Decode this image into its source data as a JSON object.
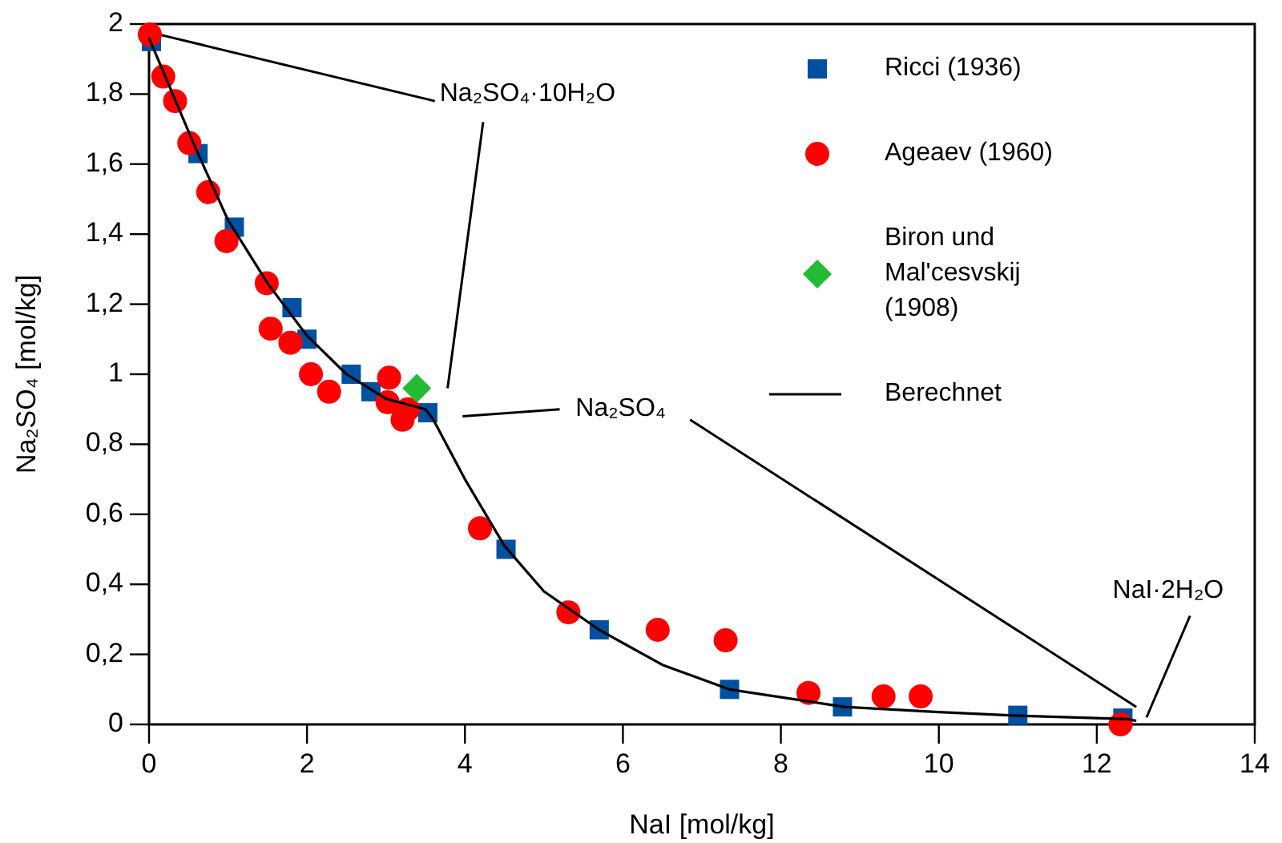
{
  "chart_data": {
    "type": "scatter",
    "xlabel": "NaI [mol/kg]",
    "ylabel": "Na₂SO₄ [mol/kg]",
    "xlim": [
      0,
      14
    ],
    "xticks": [
      0,
      2,
      4,
      6,
      8,
      10,
      12,
      14
    ],
    "ylim": [
      0,
      2
    ],
    "yticks": [
      0,
      {
        "value": 0.2,
        "label": "0,2"
      },
      {
        "value": 0.4,
        "label": "0,4"
      },
      {
        "value": 0.6,
        "label": "0,6"
      },
      {
        "value": 0.8,
        "label": "0,8"
      },
      1,
      {
        "value": 1.2,
        "label": "1,2"
      },
      {
        "value": 1.4,
        "label": "1,4"
      },
      {
        "value": 1.6,
        "label": "1,6"
      },
      {
        "value": 1.8,
        "label": "1,8"
      },
      2
    ],
    "grid": false,
    "legend": "top right",
    "series": [
      {
        "name": "Ricci (1936)",
        "marker": "square",
        "color": "#0050a0",
        "x": [
          0.03,
          0.62,
          1.08,
          1.81,
          2.0,
          2.56,
          2.81,
          3.53,
          4.52,
          5.7,
          7.35,
          8.78,
          11.0,
          12.33
        ],
        "values": [
          1.95,
          1.63,
          1.42,
          1.19,
          1.1,
          1.0,
          0.95,
          0.89,
          0.5,
          0.27,
          0.1,
          0.05,
          0.026,
          0.018
        ]
      },
      {
        "name": "Ageaev (1960)",
        "marker": "circle",
        "color": "#ff0000",
        "x": [
          0.01,
          0.18,
          0.33,
          0.51,
          0.75,
          0.98,
          1.49,
          1.54,
          1.79,
          2.05,
          2.28,
          3.04,
          3.02,
          3.21,
          3.28,
          4.19,
          5.31,
          6.44,
          7.3,
          8.35,
          9.3,
          9.77,
          12.3
        ],
        "values": [
          1.97,
          1.85,
          1.78,
          1.66,
          1.52,
          1.38,
          1.26,
          1.13,
          1.09,
          1.0,
          0.95,
          0.99,
          0.92,
          0.87,
          0.9,
          0.56,
          0.32,
          0.27,
          0.24,
          0.09,
          0.08,
          0.08,
          0
        ]
      },
      {
        "name": "Biron und Mal'cesvskij (1908)",
        "marker": "diamond",
        "color": "#22bb33",
        "x": [
          3.39
        ],
        "values": [
          0.96
        ]
      },
      {
        "name": "Berechnet",
        "type": "line",
        "marker": "none",
        "line_style": "solid",
        "color": "#000000",
        "x": [
          0,
          0.3,
          0.6,
          1.0,
          1.5,
          2.0,
          2.5,
          3.0,
          3.5,
          3.6,
          4.0,
          4.5,
          5.0,
          5.7,
          6.5,
          7.35,
          8.8,
          10.0,
          11.0,
          12.4,
          12.5
        ],
        "values": [
          1.96,
          1.8,
          1.64,
          1.44,
          1.26,
          1.11,
          1.0,
          0.93,
          0.9,
          0.87,
          0.7,
          0.51,
          0.38,
          0.27,
          0.17,
          0.1,
          0.05,
          0.035,
          0.025,
          0.015,
          0.01
        ]
      }
    ],
    "annotations": [
      {
        "text": "Na₂SO₄·10H₂O",
        "x": 0.13,
        "y": 1.97
      },
      "Na₂SO₄",
      "NaI·2H₂O"
    ]
  }
}
